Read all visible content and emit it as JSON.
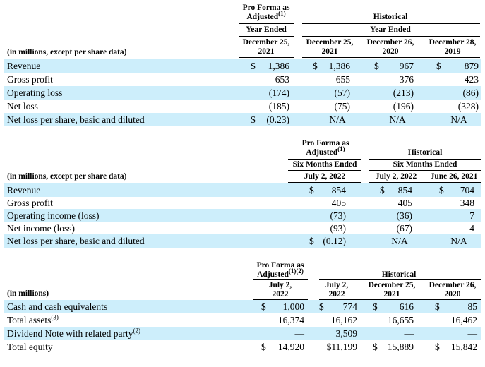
{
  "t1": {
    "units": "(in millions, except per share data)",
    "pf_title_1": "Pro Forma as",
    "pf_title_2": "Adjusted",
    "pf_sup": "(1)",
    "pf_period": "Year Ended",
    "hist_title": "Historical",
    "hist_period": "Year Ended",
    "col1_1": "December 25,",
    "col1_2": "2021",
    "col2_1": "December 25,",
    "col2_2": "2021",
    "col3_1": "December 26,",
    "col3_2": "2020",
    "col4_1": "December 28,",
    "col4_2": "2019",
    "rows": [
      {
        "label": "Revenue",
        "c1": "1,386",
        "c1_cur": "$",
        "c2": "1,386",
        "c2_cur": "$",
        "c3": "967",
        "c3_cur": "$",
        "c4": "879",
        "c4_cur": "$"
      },
      {
        "label": "Gross profit",
        "c1": "653",
        "c2": "655",
        "c3": "376",
        "c4": "423"
      },
      {
        "label": "Operating loss",
        "c1": "(174)",
        "c2": "(57)",
        "c3": "(213)",
        "c4": "(86)"
      },
      {
        "label": "Net loss",
        "c1": "(185)",
        "c2": "(75)",
        "c3": "(196)",
        "c4": "(328)"
      },
      {
        "label": "Net loss per share, basic and diluted",
        "c1": "(0.23)",
        "c1_cur": "$",
        "c2": "N/A",
        "c3": "N/A",
        "c4": "N/A"
      }
    ]
  },
  "t2": {
    "units": "(in millions, except per share data)",
    "pf_title_1": "Pro Forma as",
    "pf_title_2": "Adjusted",
    "pf_sup": "(1)",
    "pf_period": "Six Months Ended",
    "hist_title": "Historical",
    "hist_period": "Six Months Ended",
    "col1": "July 2, 2022",
    "col2": "July 2, 2022",
    "col3": "June 26, 2021",
    "rows": [
      {
        "label": "Revenue",
        "c1": "854",
        "c1_cur": "$",
        "c2": "854",
        "c2_cur": "$",
        "c3": "704",
        "c3_cur": "$"
      },
      {
        "label": "Gross profit",
        "c1": "405",
        "c2": "405",
        "c3": "348"
      },
      {
        "label": "Operating income (loss)",
        "c1": "(73)",
        "c2": "(36)",
        "c3": "7"
      },
      {
        "label": "Net income (loss)",
        "c1": "(93)",
        "c2": "(67)",
        "c3": "4"
      },
      {
        "label": "Net loss per share, basic and diluted",
        "c1": "(0.12)",
        "c1_cur": "$",
        "c2": "N/A",
        "c3": "N/A"
      }
    ]
  },
  "t3": {
    "units": "(in millions)",
    "pf_title_1": "Pro Forma as",
    "pf_title_2": "Adjusted",
    "pf_sup": "(1)(2)",
    "hist_title": "Historical",
    "col1_1": "July 2,",
    "col1_2": "2022",
    "col2_1": "July 2,",
    "col2_2": "2022",
    "col3_1": "December 25,",
    "col3_2": "2021",
    "col4_1": "December 26,",
    "col4_2": "2020",
    "rows": [
      {
        "label": "Cash and cash equivalents",
        "sup": "",
        "c1": "1,000",
        "c1_cur": "$",
        "c2": "774",
        "c2_cur": "$",
        "c3": "616",
        "c3_cur": "$",
        "c4": "85",
        "c4_cur": "$"
      },
      {
        "label": "Total assets",
        "sup": "(3)",
        "c1": "16,374",
        "c2": "16,162",
        "c3": "16,655",
        "c4": "16,462"
      },
      {
        "label": "Dividend Note with related party",
        "sup": "(2)",
        "c1": "—",
        "c2": "3,509",
        "c3": "—",
        "c4": "—"
      },
      {
        "label": "Total equity",
        "sup": "",
        "c1": "14,920",
        "c1_cur": "$",
        "c2": "$11,199",
        "c3": "15,889",
        "c3_cur": "$",
        "c4": "15,842",
        "c4_cur": "$"
      }
    ]
  }
}
